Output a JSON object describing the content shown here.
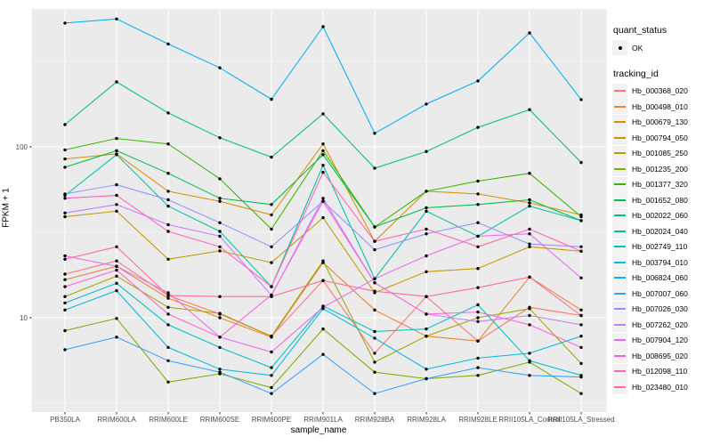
{
  "chart_data": {
    "type": "line",
    "title": "",
    "xlabel": "sample_name",
    "ylabel": "FPKM + 1",
    "y_scale": "log10",
    "ylim": [
      2.8,
      641
    ],
    "y_ticks": [
      10,
      100
    ],
    "y_minor_ticks": [
      3.162,
      31.62,
      316.2
    ],
    "grid": "on",
    "panel_bg": "#EBEBEB",
    "grid_color": "#FFFFFF",
    "tick_label_color": "#4D4D4D",
    "point_color": "#000000",
    "marker": "solid-point",
    "categories": [
      "PB350LA",
      "RRIM600LA",
      "RRIM600LE",
      "RRIM600SE",
      "RRIM600PE",
      "RRIM901LA",
      "RRIM928BA",
      "RRIM928LA",
      "RRIM928LE",
      "RRII105LA_Control",
      "RRII105LA_Stressed"
    ],
    "series": [
      {
        "name": "Hb_000368_020",
        "color": "#F8766D",
        "values": [
          18,
          21.5,
          13.5,
          10.5,
          7.8,
          16.5,
          6.2,
          13.3,
          7.3,
          11.5,
          10.3
        ]
      },
      {
        "name": "Hb_000498_010",
        "color": "#EA8331",
        "values": [
          16.7,
          20,
          13,
          10,
          7.7,
          21,
          11.1,
          7.8,
          7.3,
          17.3,
          11.1
        ]
      },
      {
        "name": "Hb_000679_130",
        "color": "#D89000",
        "values": [
          85,
          91,
          55,
          48,
          40,
          104,
          28,
          55,
          53,
          47,
          40
        ]
      },
      {
        "name": "Hb_000794_050",
        "color": "#C09B00",
        "values": [
          39,
          42,
          22,
          24.6,
          21,
          38.5,
          14,
          18.6,
          19.4,
          26,
          24.5
        ]
      },
      {
        "name": "Hb_001085_250",
        "color": "#A3A500",
        "values": [
          13.3,
          17.5,
          11.5,
          10.6,
          7.8,
          21.5,
          5.5,
          7.8,
          10,
          11.3,
          5.4
        ]
      },
      {
        "name": "Hb_001235_200",
        "color": "#7CAE00",
        "values": [
          8.4,
          9.9,
          4.2,
          4.7,
          3.9,
          8.6,
          4.8,
          4.4,
          4.6,
          5.5,
          3.6
        ]
      },
      {
        "name": "Hb_001377_320",
        "color": "#39B600",
        "values": [
          96,
          112,
          104,
          65,
          33,
          95,
          34,
          55,
          63,
          70,
          39
        ]
      },
      {
        "name": "Hb_001652_080",
        "color": "#00BB4E",
        "values": [
          76,
          95,
          70,
          50,
          46,
          90,
          34,
          44,
          46,
          49,
          37
        ]
      },
      {
        "name": "Hb_002022_060",
        "color": "#00BF7D",
        "values": [
          135,
          240,
          158,
          113,
          87,
          156,
          75,
          94,
          130,
          165,
          81
        ]
      },
      {
        "name": "Hb_002024_040",
        "color": "#00C1A3",
        "values": [
          52,
          90,
          45,
          32,
          15.2,
          78,
          16.9,
          42,
          30,
          45,
          37
        ]
      },
      {
        "name": "Hb_002749_110",
        "color": "#00BFC4",
        "values": [
          12.2,
          15.9,
          9.1,
          6.7,
          5.1,
          11.7,
          8.3,
          8.6,
          11.9,
          5.6,
          4.6
        ]
      },
      {
        "name": "Hb_003794_010",
        "color": "#00BAE0",
        "values": [
          11.1,
          14.4,
          6.7,
          5,
          4.6,
          11.3,
          7.6,
          5,
          5.8,
          6.2,
          7.8
        ]
      },
      {
        "name": "Hb_006824_060",
        "color": "#00B0F6",
        "values": [
          530,
          560,
          400,
          290,
          190,
          505,
          120,
          178,
          243,
          464,
          189
        ]
      },
      {
        "name": "Hb_007007_060",
        "color": "#35A2FF",
        "values": [
          6.5,
          7.7,
          5.6,
          4.8,
          3.6,
          6.1,
          3.6,
          4.4,
          5.1,
          4.6,
          4.5
        ]
      },
      {
        "name": "Hb_007026_030",
        "color": "#9590FF",
        "values": [
          53,
          60,
          49,
          36,
          26,
          48,
          25,
          31,
          36,
          27,
          26
        ]
      },
      {
        "name": "Hb_007262_020",
        "color": "#C77CFF",
        "values": [
          41,
          46,
          35,
          30,
          13.5,
          50,
          16,
          10.5,
          9.5,
          10.3,
          9.1
        ]
      },
      {
        "name": "Hb_007904_120",
        "color": "#E76BF3",
        "values": [
          23,
          20,
          14,
          7.7,
          6.3,
          11.5,
          16.9,
          23,
          30,
          31,
          17.1
        ]
      },
      {
        "name": "Hb_008695_020",
        "color": "#FA62DB",
        "values": [
          15.2,
          19,
          10.5,
          7.7,
          13.6,
          48,
          16,
          10.5,
          10.8,
          9.1,
          6.7
        ]
      },
      {
        "name": "Hb_012098_110",
        "color": "#FF62BC",
        "values": [
          50,
          52,
          32,
          26,
          15.2,
          71,
          28,
          33,
          26,
          33,
          24.5
        ]
      },
      {
        "name": "Hb_023480_010",
        "color": "#FF6A98",
        "values": [
          22,
          26,
          13.5,
          13.3,
          13.3,
          16.5,
          14.3,
          13.3,
          15,
          17.3,
          10.3
        ]
      }
    ],
    "legend": {
      "position": "right",
      "quant_status_title": "quant_status",
      "quant_status_items": [
        {
          "label": "OK",
          "shape": "point",
          "color": "#000000"
        }
      ],
      "tracking_id_title": "tracking_id"
    }
  }
}
